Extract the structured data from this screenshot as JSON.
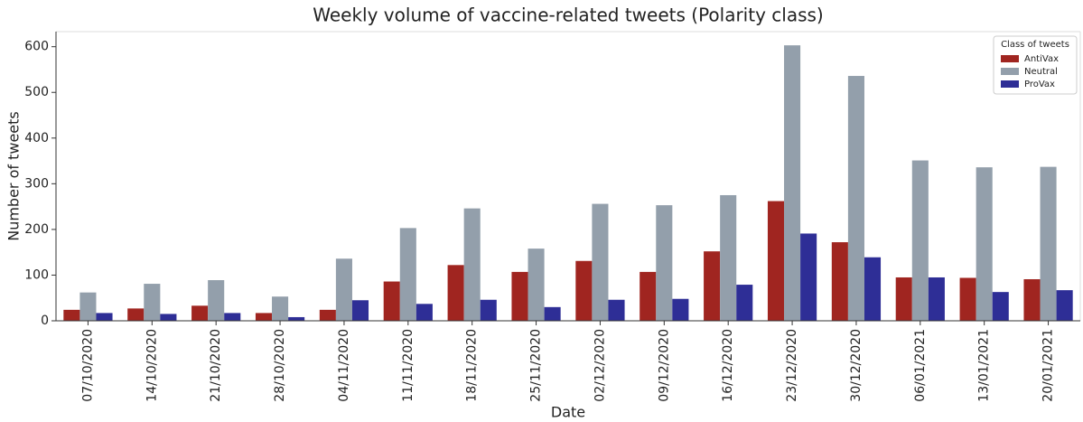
{
  "chart_data": {
    "type": "bar",
    "title": "Weekly volume of vaccine-related tweets (Polarity class)",
    "x_label": "Date",
    "y_label": "Number of tweets",
    "legend_title": "Class of tweets",
    "legend_position": "upper right",
    "categories": [
      "07/10/2020",
      "14/10/2020",
      "21/10/2020",
      "28/10/2020",
      "04/11/2020",
      "11/11/2020",
      "18/11/2020",
      "25/11/2020",
      "02/12/2020",
      "09/12/2020",
      "16/12/2020",
      "23/12/2020",
      "30/12/2020",
      "06/01/2021",
      "13/01/2021",
      "20/01/2021"
    ],
    "series": [
      {
        "name": "AntiVax",
        "color": "#a02520",
        "values": [
          24,
          27,
          33,
          17,
          24,
          86,
          122,
          107,
          131,
          107,
          152,
          262,
          172,
          95,
          94,
          91
        ]
      },
      {
        "name": "Neutral",
        "color": "#939fab",
        "values": [
          62,
          81,
          89,
          53,
          136,
          203,
          246,
          158,
          256,
          253,
          275,
          603,
          536,
          351,
          336,
          337
        ]
      },
      {
        "name": "ProVax",
        "color": "#2e2e96",
        "values": [
          17,
          15,
          17,
          8,
          45,
          37,
          46,
          30,
          46,
          48,
          79,
          191,
          139,
          95,
          63,
          67
        ]
      }
    ],
    "ylim": [
      0,
      633
    ],
    "yticks": [
      0,
      100,
      200,
      300,
      400,
      500,
      600
    ],
    "grid": false
  }
}
